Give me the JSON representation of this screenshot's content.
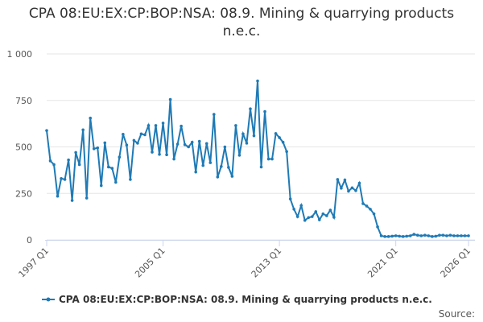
{
  "chart_data": {
    "type": "line",
    "title": "CPA 08:EU:EX:CP:BOP:NSA: 08.9. Mining & quarrying products n.e.c.",
    "source": "Source:",
    "categories": [
      "1997 Q1",
      null,
      null,
      null,
      null,
      null,
      null,
      null,
      null,
      null,
      null,
      null,
      null,
      null,
      null,
      null,
      null,
      null,
      null,
      null,
      null,
      null,
      null,
      null,
      null,
      null,
      null,
      null,
      null,
      null,
      null,
      null,
      "2005 Q1",
      null,
      null,
      null,
      null,
      null,
      null,
      null,
      null,
      null,
      null,
      null,
      null,
      null,
      null,
      null,
      null,
      null,
      null,
      null,
      null,
      null,
      null,
      null,
      null,
      null,
      null,
      null,
      null,
      null,
      null,
      null,
      "2013 Q1",
      null,
      null,
      null,
      null,
      null,
      null,
      null,
      null,
      null,
      null,
      null,
      null,
      null,
      null,
      null,
      null,
      null,
      null,
      null,
      null,
      null,
      null,
      null,
      null,
      null,
      null,
      null,
      null,
      null,
      null,
      null,
      "2021 Q1",
      null,
      null,
      null,
      null,
      null,
      null,
      null,
      null,
      null,
      null,
      null,
      null,
      null,
      null,
      null,
      null,
      null,
      null,
      null,
      "2026 Q1"
    ],
    "series": [
      {
        "name": "CPA 08:EU:EX:CP:BOP:NSA: 08.9. Mining & quarrying products n.e.c.",
        "color": "#1f7ab5",
        "values": [
          588,
          425,
          405,
          235,
          330,
          325,
          430,
          212,
          470,
          405,
          592,
          225,
          655,
          490,
          495,
          292,
          522,
          392,
          385,
          310,
          445,
          568,
          510,
          325,
          535,
          520,
          570,
          565,
          615,
          472,
          615,
          460,
          628,
          458,
          755,
          435,
          515,
          612,
          512,
          500,
          525,
          365,
          530,
          400,
          518,
          415,
          675,
          338,
          395,
          500,
          390,
          342,
          615,
          455,
          570,
          520,
          705,
          560,
          855,
          392,
          690,
          435,
          435,
          572,
          550,
          525,
          475,
          220,
          165,
          125,
          185,
          105,
          120,
          125,
          152,
          108,
          140,
          130,
          160,
          122,
          325,
          278,
          322,
          262,
          280,
          265,
          305,
          195,
          182,
          165,
          140,
          70,
          22,
          18,
          18,
          20,
          22,
          20,
          18,
          20,
          22,
          30,
          25,
          22,
          25,
          22,
          18,
          20,
          25,
          25,
          22,
          25,
          22,
          22,
          22,
          22,
          22
        ]
      }
    ],
    "ylim": [
      0,
      1000
    ],
    "yticks": [
      0,
      250,
      500,
      750,
      {
        "value": 1000,
        "label": "1 000"
      }
    ],
    "grid": true
  }
}
